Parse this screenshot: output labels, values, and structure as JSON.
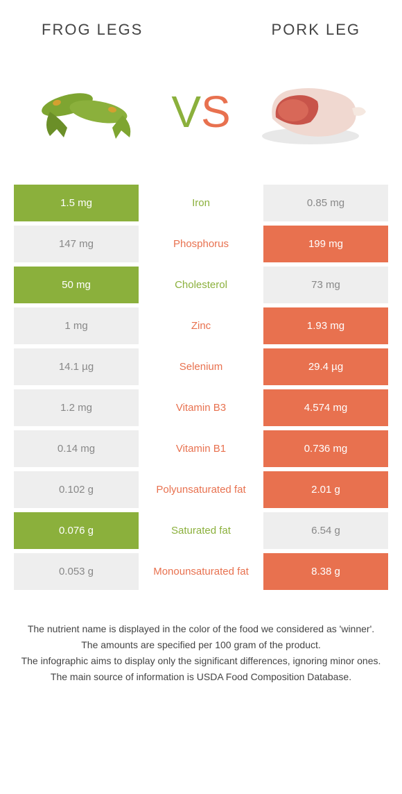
{
  "colors": {
    "green": "#8bb03c",
    "orange": "#e8714f",
    "gray_bg": "#eeeeee",
    "gray_text": "#888888"
  },
  "left_title": "Frog legs",
  "right_title": "Pork leg",
  "vs_v": "V",
  "vs_s": "S",
  "rows": [
    {
      "left": "1.5 mg",
      "mid": "Iron",
      "right": "0.85 mg",
      "winner": "left"
    },
    {
      "left": "147 mg",
      "mid": "Phosphorus",
      "right": "199 mg",
      "winner": "right"
    },
    {
      "left": "50 mg",
      "mid": "Cholesterol",
      "right": "73 mg",
      "winner": "left"
    },
    {
      "left": "1 mg",
      "mid": "Zinc",
      "right": "1.93 mg",
      "winner": "right"
    },
    {
      "left": "14.1 µg",
      "mid": "Selenium",
      "right": "29.4 µg",
      "winner": "right"
    },
    {
      "left": "1.2 mg",
      "mid": "Vitamin B3",
      "right": "4.574 mg",
      "winner": "right"
    },
    {
      "left": "0.14 mg",
      "mid": "Vitamin B1",
      "right": "0.736 mg",
      "winner": "right"
    },
    {
      "left": "0.102 g",
      "mid": "Polyunsaturated fat",
      "right": "2.01 g",
      "winner": "right"
    },
    {
      "left": "0.076 g",
      "mid": "Saturated fat",
      "right": "6.54 g",
      "winner": "left"
    },
    {
      "left": "0.053 g",
      "mid": "Monounsaturated fat",
      "right": "8.38 g",
      "winner": "right"
    }
  ],
  "footer": [
    "The nutrient name is displayed in the color of the food we considered as 'winner'.",
    "The amounts are specified per 100 gram of the product.",
    "The infographic aims to display only the significant differences, ignoring minor ones.",
    "The main source of information is USDA Food Composition Database."
  ]
}
